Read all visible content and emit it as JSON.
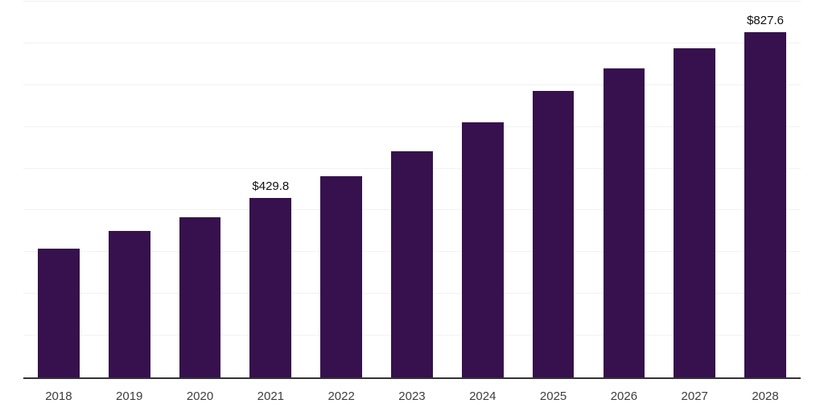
{
  "chart_data": {
    "type": "bar",
    "title": "",
    "xlabel": "",
    "ylabel": "",
    "categories": [
      "2018",
      "2019",
      "2020",
      "2021",
      "2022",
      "2023",
      "2024",
      "2025",
      "2026",
      "2027",
      "2028"
    ],
    "values": [
      308,
      350,
      383,
      429.8,
      481,
      542,
      611,
      686,
      740,
      788,
      827.6
    ],
    "value_labels": [
      "",
      "",
      "",
      "$429.8",
      "",
      "",
      "",
      "",
      "",
      "",
      "$827.6"
    ],
    "ylim": [
      0,
      900
    ],
    "grid_step": 100,
    "grid": true,
    "legend": false,
    "y_tick_labels_visible": false,
    "bar_color": "#36114d"
  },
  "colors": {
    "background": "#ffffff",
    "bar": "#36114d",
    "gridline": "#f2f2f2",
    "axis": "#333333",
    "x_label_text": "#3d3d3d",
    "value_label_text": "#111111"
  }
}
